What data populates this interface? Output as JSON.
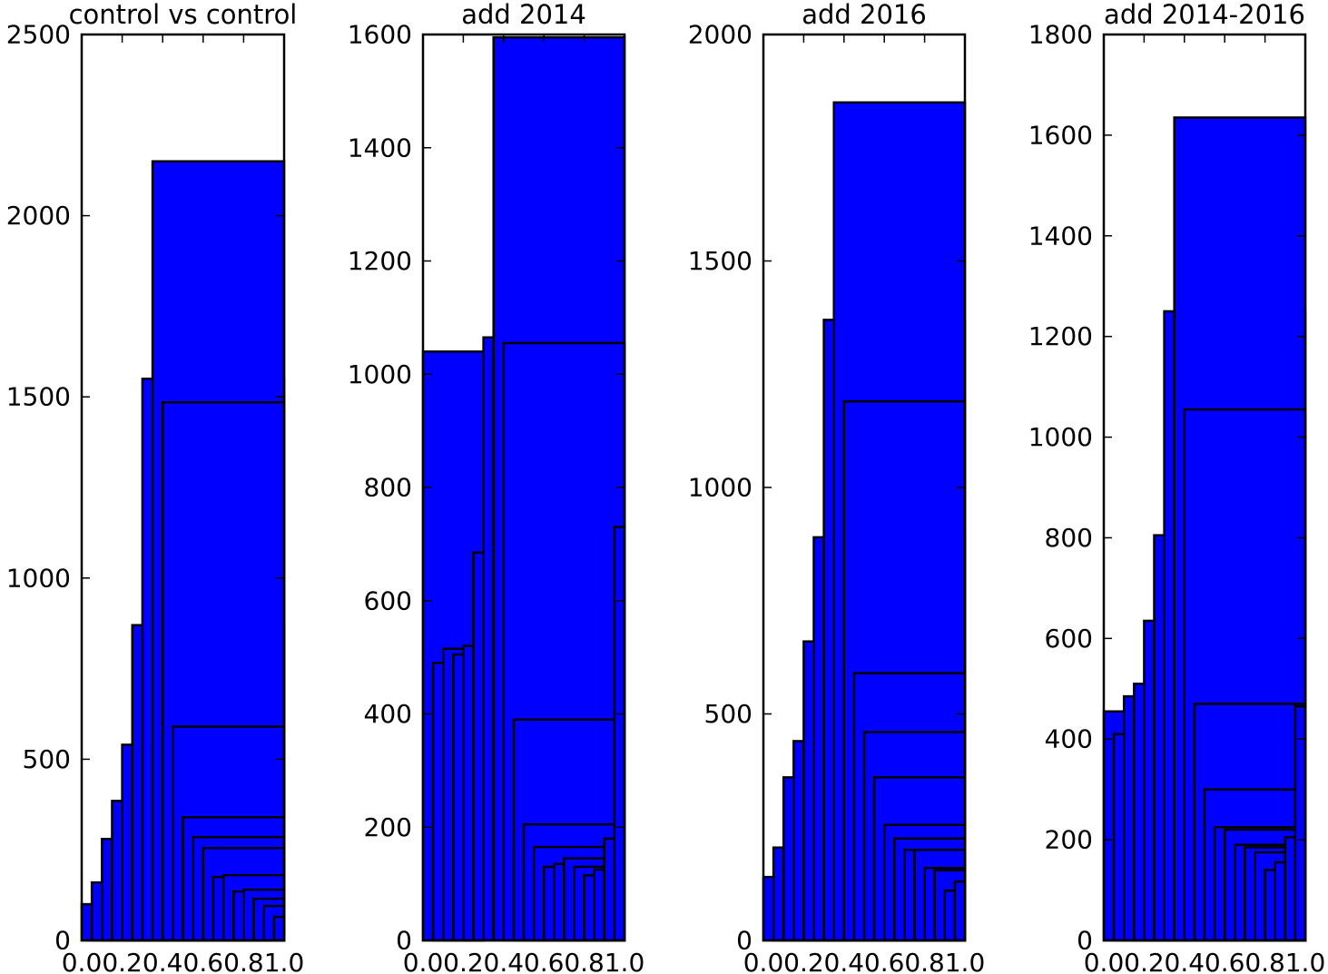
{
  "chart_data": [
    {
      "type": "histogram",
      "title": "control vs control",
      "xlim": [
        0,
        1
      ],
      "ylim": [
        0,
        2500
      ],
      "xticks": [
        "0.0",
        "0.2",
        "0.4",
        "0.6",
        "0.8",
        "1.0"
      ],
      "yticks": [
        "0",
        "500",
        "1000",
        "1500",
        "2000",
        "2500"
      ],
      "bars": [
        {
          "x0": 0.0,
          "x1": 1.0,
          "y": 100
        },
        {
          "x0": 0.05,
          "x1": 1.0,
          "y": 160
        },
        {
          "x0": 0.1,
          "x1": 1.0,
          "y": 280
        },
        {
          "x0": 0.15,
          "x1": 1.0,
          "y": 385
        },
        {
          "x0": 0.2,
          "x1": 1.0,
          "y": 540
        },
        {
          "x0": 0.25,
          "x1": 1.0,
          "y": 870
        },
        {
          "x0": 0.3,
          "x1": 1.0,
          "y": 1550
        },
        {
          "x0": 0.35,
          "x1": 1.0,
          "y": 2150
        },
        {
          "x0": 0.4,
          "x1": 1.0,
          "y": 1485
        },
        {
          "x0": 0.45,
          "x1": 1.0,
          "y": 590
        },
        {
          "x0": 0.5,
          "x1": 1.0,
          "y": 340
        },
        {
          "x0": 0.55,
          "x1": 1.0,
          "y": 285
        },
        {
          "x0": 0.6,
          "x1": 1.0,
          "y": 255
        },
        {
          "x0": 0.65,
          "x1": 1.0,
          "y": 175
        },
        {
          "x0": 0.7,
          "x1": 1.0,
          "y": 180
        },
        {
          "x0": 0.75,
          "x1": 1.0,
          "y": 135
        },
        {
          "x0": 0.8,
          "x1": 1.0,
          "y": 140
        },
        {
          "x0": 0.85,
          "x1": 1.0,
          "y": 115
        },
        {
          "x0": 0.9,
          "x1": 1.0,
          "y": 95
        },
        {
          "x0": 0.95,
          "x1": 1.0,
          "y": 65
        }
      ]
    },
    {
      "type": "histogram",
      "title": "add 2014",
      "xlim": [
        0,
        1
      ],
      "ylim": [
        0,
        1600
      ],
      "xticks": [
        "0.0",
        "0.2",
        "0.4",
        "0.6",
        "0.8",
        "1.0"
      ],
      "yticks": [
        "0",
        "200",
        "400",
        "600",
        "800",
        "1000",
        "1200",
        "1400",
        "1600"
      ],
      "bars": [
        {
          "x0": 0.0,
          "x1": 0.3,
          "y": 1040
        },
        {
          "x0": 0.05,
          "x1": 0.3,
          "y": 490
        },
        {
          "x0": 0.1,
          "x1": 0.3,
          "y": 515
        },
        {
          "x0": 0.15,
          "x1": 0.3,
          "y": 505
        },
        {
          "x0": 0.2,
          "x1": 0.3,
          "y": 520
        },
        {
          "x0": 0.25,
          "x1": 0.3,
          "y": 685
        },
        {
          "x0": 0.3,
          "x1": 0.35,
          "y": 1065
        },
        {
          "x0": 0.35,
          "x1": 1.0,
          "y": 1595
        },
        {
          "x0": 0.4,
          "x1": 1.0,
          "y": 1055
        },
        {
          "x0": 0.45,
          "x1": 0.95,
          "y": 390
        },
        {
          "x0": 0.5,
          "x1": 0.95,
          "y": 205
        },
        {
          "x0": 0.55,
          "x1": 0.9,
          "y": 165
        },
        {
          "x0": 0.6,
          "x1": 0.9,
          "y": 130
        },
        {
          "x0": 0.65,
          "x1": 0.9,
          "y": 135
        },
        {
          "x0": 0.7,
          "x1": 0.9,
          "y": 145
        },
        {
          "x0": 0.75,
          "x1": 0.9,
          "y": 130
        },
        {
          "x0": 0.8,
          "x1": 0.9,
          "y": 115
        },
        {
          "x0": 0.85,
          "x1": 0.9,
          "y": 125
        },
        {
          "x0": 0.9,
          "x1": 0.95,
          "y": 180
        },
        {
          "x0": 0.95,
          "x1": 1.0,
          "y": 730
        }
      ]
    },
    {
      "type": "histogram",
      "title": "add 2016",
      "xlim": [
        0,
        1
      ],
      "ylim": [
        0,
        2000
      ],
      "xticks": [
        "0.0",
        "0.2",
        "0.4",
        "0.6",
        "0.8",
        "1.0"
      ],
      "yticks": [
        "0",
        "500",
        "1000",
        "1500",
        "2000"
      ],
      "bars": [
        {
          "x0": 0.0,
          "x1": 1.0,
          "y": 140
        },
        {
          "x0": 0.05,
          "x1": 1.0,
          "y": 205
        },
        {
          "x0": 0.1,
          "x1": 1.0,
          "y": 360
        },
        {
          "x0": 0.15,
          "x1": 1.0,
          "y": 440
        },
        {
          "x0": 0.2,
          "x1": 1.0,
          "y": 660
        },
        {
          "x0": 0.25,
          "x1": 1.0,
          "y": 890
        },
        {
          "x0": 0.3,
          "x1": 1.0,
          "y": 1370
        },
        {
          "x0": 0.35,
          "x1": 1.0,
          "y": 1850
        },
        {
          "x0": 0.4,
          "x1": 1.0,
          "y": 1190
        },
        {
          "x0": 0.45,
          "x1": 1.0,
          "y": 590
        },
        {
          "x0": 0.5,
          "x1": 1.0,
          "y": 460
        },
        {
          "x0": 0.55,
          "x1": 1.0,
          "y": 360
        },
        {
          "x0": 0.6,
          "x1": 1.0,
          "y": 255
        },
        {
          "x0": 0.65,
          "x1": 1.0,
          "y": 225
        },
        {
          "x0": 0.7,
          "x1": 1.0,
          "y": 200
        },
        {
          "x0": 0.75,
          "x1": 1.0,
          "y": 200
        },
        {
          "x0": 0.8,
          "x1": 1.0,
          "y": 160
        },
        {
          "x0": 0.85,
          "x1": 1.0,
          "y": 155
        },
        {
          "x0": 0.9,
          "x1": 1.0,
          "y": 110
        },
        {
          "x0": 0.95,
          "x1": 1.0,
          "y": 130
        }
      ]
    },
    {
      "type": "histogram",
      "title": "add 2014-2016",
      "xlim": [
        0,
        1
      ],
      "ylim": [
        0,
        1800
      ],
      "xticks": [
        "0.0",
        "0.2",
        "0.4",
        "0.6",
        "0.8",
        "1.0"
      ],
      "yticks": [
        "0",
        "200",
        "400",
        "600",
        "800",
        "1000",
        "1200",
        "1400",
        "1600",
        "1800"
      ],
      "bars": [
        {
          "x0": 0.0,
          "x1": 1.0,
          "y": 455
        },
        {
          "x0": 0.05,
          "x1": 1.0,
          "y": 410
        },
        {
          "x0": 0.1,
          "x1": 1.0,
          "y": 485
        },
        {
          "x0": 0.15,
          "x1": 1.0,
          "y": 510
        },
        {
          "x0": 0.2,
          "x1": 1.0,
          "y": 635
        },
        {
          "x0": 0.25,
          "x1": 1.0,
          "y": 805
        },
        {
          "x0": 0.3,
          "x1": 1.0,
          "y": 1250
        },
        {
          "x0": 0.35,
          "x1": 1.0,
          "y": 1635
        },
        {
          "x0": 0.4,
          "x1": 1.0,
          "y": 1055
        },
        {
          "x0": 0.45,
          "x1": 1.0,
          "y": 470
        },
        {
          "x0": 0.5,
          "x1": 0.95,
          "y": 300
        },
        {
          "x0": 0.55,
          "x1": 0.95,
          "y": 225
        },
        {
          "x0": 0.6,
          "x1": 0.95,
          "y": 220
        },
        {
          "x0": 0.65,
          "x1": 0.9,
          "y": 190
        },
        {
          "x0": 0.7,
          "x1": 0.9,
          "y": 185
        },
        {
          "x0": 0.75,
          "x1": 0.9,
          "y": 175
        },
        {
          "x0": 0.8,
          "x1": 0.9,
          "y": 140
        },
        {
          "x0": 0.85,
          "x1": 0.9,
          "y": 155
        },
        {
          "x0": 0.9,
          "x1": 0.95,
          "y": 205
        },
        {
          "x0": 0.95,
          "x1": 1.0,
          "y": 465
        }
      ]
    }
  ]
}
